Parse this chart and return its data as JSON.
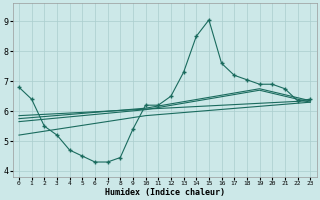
{
  "bg_color": "#cce8e8",
  "grid_color": "#aacece",
  "line_color": "#1a6b5e",
  "xlabel": "Humidex (Indice chaleur)",
  "xlim": [
    -0.5,
    23.5
  ],
  "ylim": [
    3.8,
    9.6
  ],
  "yticks": [
    4,
    5,
    6,
    7,
    8,
    9
  ],
  "xticks": [
    0,
    1,
    2,
    3,
    4,
    5,
    6,
    7,
    8,
    9,
    10,
    11,
    12,
    13,
    14,
    15,
    16,
    17,
    18,
    19,
    20,
    21,
    22,
    23
  ],
  "main_x": [
    0,
    1,
    2,
    3,
    4,
    5,
    6,
    7,
    8,
    9,
    10,
    11,
    12,
    13,
    14,
    15,
    16,
    17,
    18,
    19,
    20,
    21,
    22,
    23
  ],
  "main_y": [
    6.8,
    6.4,
    5.5,
    5.2,
    4.7,
    4.5,
    4.3,
    4.3,
    4.45,
    5.4,
    6.2,
    6.2,
    6.5,
    7.3,
    8.5,
    9.05,
    7.6,
    7.2,
    7.05,
    6.9,
    6.9,
    6.75,
    6.35,
    6.4
  ],
  "line2_x": [
    0,
    23
  ],
  "line2_y": [
    5.85,
    6.35
  ],
  "line3_x": [
    0,
    10,
    19,
    23
  ],
  "line3_y": [
    5.75,
    6.1,
    6.75,
    6.35
  ],
  "line4_x": [
    0,
    10,
    19,
    23
  ],
  "line4_y": [
    5.65,
    6.05,
    6.7,
    6.3
  ],
  "line5_x": [
    0,
    10,
    23
  ],
  "line5_y": [
    5.2,
    5.85,
    6.3
  ]
}
